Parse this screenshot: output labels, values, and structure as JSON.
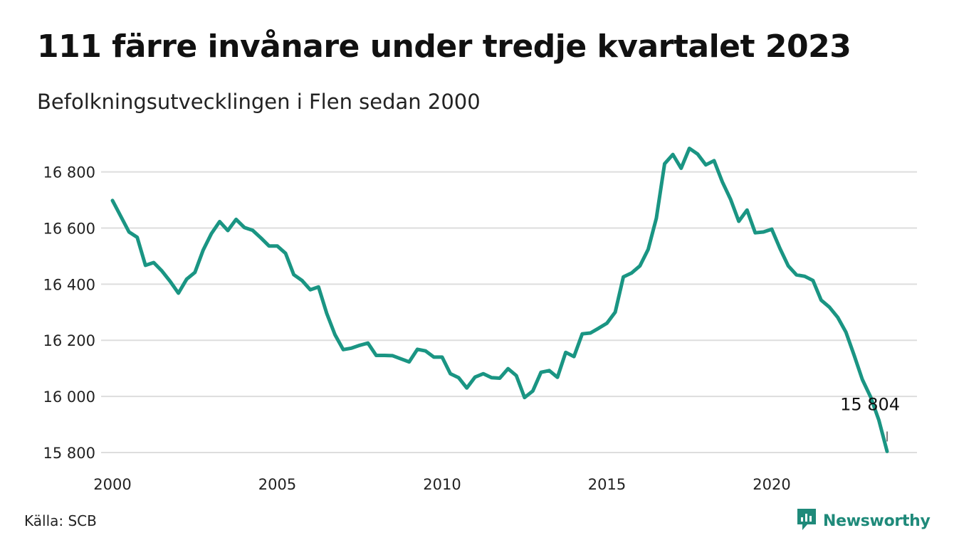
{
  "title": "111 färre invånare under tredje kvartalet 2023",
  "subtitle": "Befolkningsutvecklingen i Flen sedan 2000",
  "source": "Källa: SCB",
  "brand": {
    "name": "Newsworthy",
    "icon": "newsworthy-logo-icon",
    "color": "#1f8a7a"
  },
  "colors": {
    "line": "#1a9583",
    "grid": "#dddddd"
  },
  "chart_data": {
    "type": "line",
    "title": "111 färre invånare under tredje kvartalet 2023",
    "xlabel": "",
    "ylabel": "",
    "x_ticks": [
      "2000",
      "2005",
      "2010",
      "2015",
      "2020"
    ],
    "y_ticks": [
      "15 800",
      "16 000",
      "16 200",
      "16 400",
      "16 600",
      "16 800"
    ],
    "xlim": [
      "2000-Q1",
      "2023-Q3"
    ],
    "ylim": [
      15800,
      16900
    ],
    "grid": "horizontal",
    "annotation": {
      "text": "15 804",
      "x": "2023-Q3",
      "y": 15804
    },
    "series": [
      {
        "x": [
          "2000-Q1",
          "2000-Q2",
          "2000-Q3",
          "2000-Q4",
          "2001-Q1",
          "2001-Q2",
          "2001-Q3",
          "2001-Q4",
          "2002-Q1",
          "2002-Q2",
          "2002-Q3",
          "2002-Q4",
          "2003-Q1",
          "2003-Q2",
          "2003-Q3",
          "2003-Q4",
          "2004-Q1",
          "2004-Q2",
          "2004-Q3",
          "2004-Q4",
          "2005-Q1",
          "2005-Q2",
          "2005-Q3",
          "2005-Q4",
          "2006-Q1",
          "2006-Q2",
          "2006-Q3",
          "2006-Q4",
          "2007-Q1",
          "2007-Q2",
          "2007-Q3",
          "2007-Q4",
          "2008-Q1",
          "2008-Q2",
          "2008-Q3",
          "2008-Q4",
          "2009-Q1",
          "2009-Q2",
          "2009-Q3",
          "2009-Q4",
          "2010-Q1",
          "2010-Q2",
          "2010-Q3",
          "2010-Q4",
          "2011-Q1",
          "2011-Q2",
          "2011-Q3",
          "2011-Q4",
          "2012-Q1",
          "2012-Q2",
          "2012-Q3",
          "2012-Q4",
          "2013-Q1",
          "2013-Q2",
          "2013-Q3",
          "2013-Q4",
          "2014-Q1",
          "2014-Q2",
          "2014-Q3",
          "2014-Q4",
          "2015-Q1",
          "2015-Q2",
          "2015-Q3",
          "2015-Q4",
          "2016-Q1",
          "2016-Q2",
          "2016-Q3",
          "2016-Q4",
          "2017-Q1",
          "2017-Q2",
          "2017-Q3",
          "2017-Q4",
          "2018-Q1",
          "2018-Q2",
          "2018-Q3",
          "2018-Q4",
          "2019-Q1",
          "2019-Q2",
          "2019-Q3",
          "2019-Q4",
          "2020-Q1",
          "2020-Q2",
          "2020-Q3",
          "2020-Q4",
          "2021-Q1",
          "2021-Q2",
          "2021-Q3",
          "2021-Q4",
          "2022-Q1",
          "2022-Q2",
          "2022-Q3",
          "2022-Q4",
          "2023-Q1",
          "2023-Q2",
          "2023-Q3"
        ],
        "values": [
          16698,
          16642,
          16586,
          16567,
          16467,
          16477,
          16447,
          16410,
          16368,
          16418,
          16442,
          16521,
          16580,
          16623,
          16591,
          16631,
          16602,
          16592,
          16565,
          16536,
          16536,
          16510,
          16434,
          16413,
          16380,
          16390,
          16296,
          16220,
          16167,
          16172,
          16182,
          16190,
          16146,
          16146,
          16145,
          16134,
          16123,
          16168,
          16162,
          16140,
          16140,
          16081,
          16067,
          16030,
          16069,
          16081,
          16067,
          16065,
          16099,
          16074,
          15996,
          16019,
          16086,
          16092,
          16068,
          16157,
          16142,
          16223,
          16226,
          16243,
          16261,
          16300,
          16426,
          16440,
          16465,
          16524,
          16635,
          16829,
          16862,
          16813,
          16884,
          16864,
          16825,
          16840,
          16765,
          16703,
          16624,
          16664,
          16583,
          16586,
          16596,
          16527,
          16465,
          16433,
          16428,
          16413,
          16343,
          16318,
          16282,
          16229,
          16146,
          16060,
          15998,
          15915,
          15804
        ]
      }
    ]
  }
}
